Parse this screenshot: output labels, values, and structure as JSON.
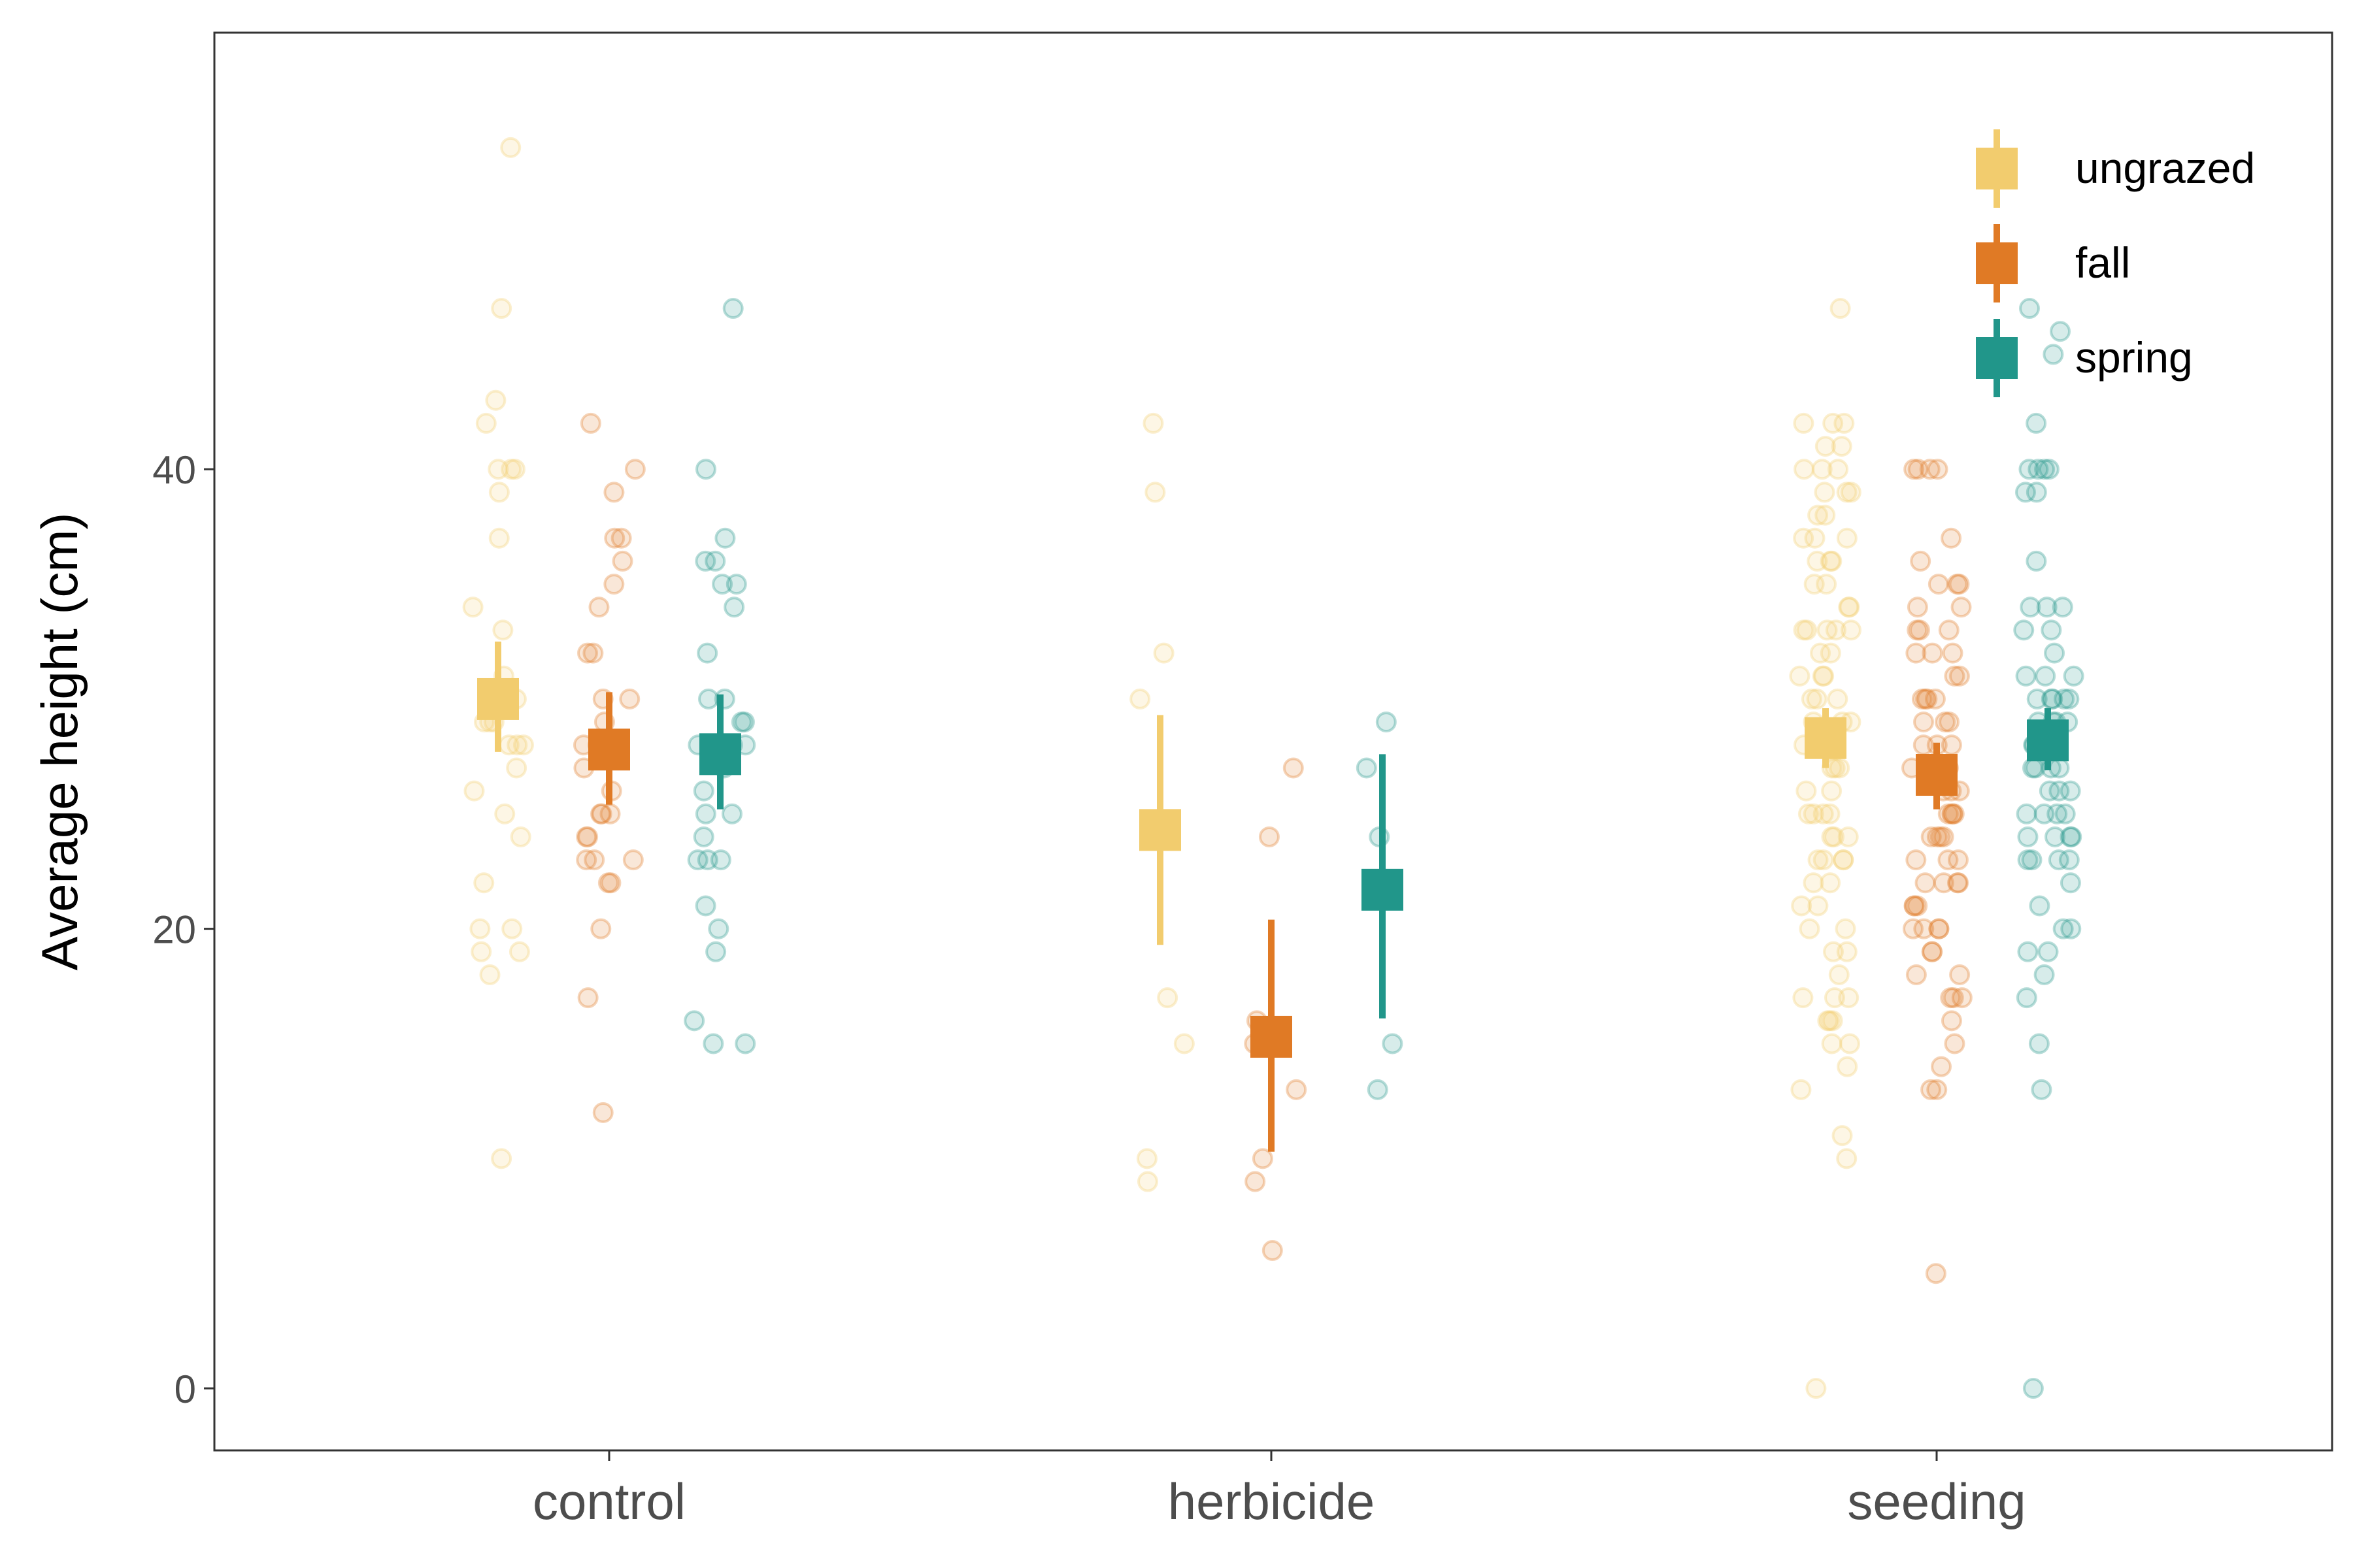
{
  "chart_data": {
    "type": "scatter",
    "title": "",
    "xlabel": "",
    "ylabel": "Average height (cm)",
    "ylim": [
      -2.7,
      59
    ],
    "yticks": [
      0,
      20,
      40
    ],
    "categories": [
      "control",
      "herbicide",
      "seeding"
    ],
    "grid": false,
    "legend_position": "top-right",
    "series": [
      {
        "name": "ungrazed",
        "color": "#f2cc6e",
        "summary": [
          {
            "category": "control",
            "mean": 30.0,
            "low": 27.7,
            "high": 32.5
          },
          {
            "category": "herbicide",
            "mean": 24.3,
            "low": 19.3,
            "high": 29.3
          },
          {
            "category": "seeding",
            "mean": 28.3,
            "low": 27.0,
            "high": 29.6
          }
        ],
        "points": {
          "control": [
            54,
            47,
            43,
            42,
            40,
            40,
            40,
            39,
            37,
            34,
            33,
            31,
            30,
            30,
            29,
            29,
            29,
            28,
            28,
            28,
            27,
            26,
            25,
            24,
            22,
            20,
            20,
            19,
            19,
            18,
            10
          ],
          "herbicide": [
            42,
            39,
            32,
            30,
            17,
            15,
            10,
            9
          ],
          "seeding": [
            47,
            42,
            42,
            42,
            41,
            41,
            40,
            40,
            40,
            39,
            39,
            39,
            38,
            38,
            37,
            37,
            37,
            36,
            36,
            36,
            35,
            35,
            34,
            34,
            33,
            33,
            33,
            33,
            33,
            32,
            32,
            31,
            31,
            31,
            30,
            30,
            30,
            29,
            29,
            29,
            28,
            28,
            28,
            27,
            27,
            27,
            26,
            26,
            25,
            25,
            25,
            25,
            24,
            24,
            24,
            23,
            23,
            23,
            23,
            22,
            22,
            21,
            21,
            20,
            20,
            19,
            19,
            18,
            17,
            17,
            17,
            16,
            16,
            16,
            15,
            15,
            14,
            13,
            11,
            10,
            0
          ]
        }
      },
      {
        "name": "fall",
        "color": "#e07a25",
        "summary": [
          {
            "category": "control",
            "mean": 27.8,
            "low": 25.4,
            "high": 30.3
          },
          {
            "category": "herbicide",
            "mean": 15.3,
            "low": 10.3,
            "high": 20.4
          },
          {
            "category": "seeding",
            "mean": 26.7,
            "low": 25.2,
            "high": 28.1
          }
        ],
        "points": {
          "control": [
            42,
            40,
            39,
            37,
            37,
            36,
            35,
            34,
            32,
            32,
            30,
            30,
            29,
            28,
            28,
            27,
            26,
            25,
            25,
            25,
            24,
            24,
            23,
            23,
            23,
            22,
            22,
            20,
            17,
            12
          ],
          "herbicide": [
            27,
            24,
            16,
            15,
            13,
            10,
            9,
            6
          ],
          "seeding": [
            40,
            40,
            40,
            40,
            37,
            36,
            35,
            35,
            35,
            34,
            34,
            33,
            33,
            33,
            32,
            32,
            32,
            31,
            31,
            30,
            30,
            30,
            30,
            29,
            29,
            29,
            28,
            28,
            28,
            27,
            27,
            27,
            26,
            26,
            26,
            25,
            25,
            25,
            25,
            24,
            24,
            24,
            24,
            23,
            23,
            23,
            22,
            22,
            22,
            22,
            21,
            21,
            21,
            20,
            20,
            20,
            20,
            19,
            19,
            18,
            18,
            17,
            17,
            17,
            16,
            15,
            14,
            13,
            13,
            5
          ]
        }
      },
      {
        "name": "spring",
        "color": "#21968a",
        "summary": [
          {
            "category": "control",
            "mean": 27.6,
            "low": 25.2,
            "high": 30.2
          },
          {
            "category": "herbicide",
            "mean": 21.7,
            "low": 16.1,
            "high": 27.6
          },
          {
            "category": "seeding",
            "mean": 28.2,
            "low": 26.9,
            "high": 29.6
          }
        ],
        "points": {
          "control": [
            47,
            40,
            37,
            36,
            36,
            35,
            35,
            34,
            32,
            30,
            30,
            29,
            29,
            28,
            28,
            28,
            27,
            26,
            25,
            25,
            24,
            23,
            23,
            23,
            21,
            20,
            19,
            16,
            15,
            15
          ],
          "herbicide": [
            29,
            27,
            24,
            15,
            13
          ],
          "seeding": [
            47,
            46,
            45,
            42,
            40,
            40,
            40,
            40,
            39,
            39,
            36,
            34,
            34,
            34,
            33,
            33,
            32,
            31,
            31,
            31,
            30,
            30,
            30,
            30,
            30,
            29,
            29,
            29,
            29,
            28,
            28,
            28,
            28,
            27,
            27,
            27,
            27,
            26,
            26,
            26,
            25,
            25,
            25,
            25,
            24,
            24,
            24,
            24,
            23,
            23,
            23,
            23,
            22,
            21,
            20,
            20,
            19,
            19,
            18,
            17,
            15,
            13,
            0
          ]
        }
      }
    ]
  }
}
